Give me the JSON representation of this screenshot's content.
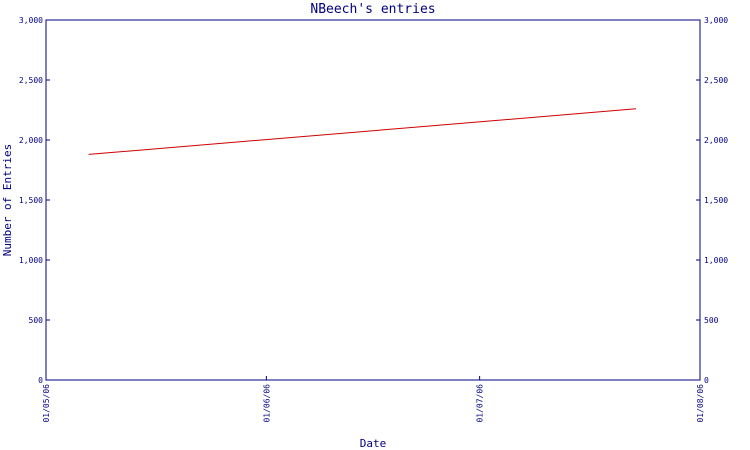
{
  "chart_data": {
    "type": "line",
    "title": "NBeech's entries",
    "xlabel": "Date",
    "ylabel": "Number of Entries",
    "ylim": [
      0,
      3000
    ],
    "yticks": [
      0,
      500,
      1000,
      1500,
      2000,
      2500,
      3000
    ],
    "ytick_labels": [
      "0",
      "500",
      "1,000",
      "1,500",
      "2,000",
      "2,500",
      "3,000"
    ],
    "xlim": [
      "2006-05-01",
      "2006-08-01"
    ],
    "xticks": [
      "2006-05-01",
      "2006-06-01",
      "2006-07-01",
      "2006-08-01"
    ],
    "xtick_labels": [
      "01/05/06",
      "01/06/06",
      "01/07/06",
      "01/08/06"
    ],
    "grid": false,
    "series": [
      {
        "color": "#cc0000",
        "points": [
          {
            "x": "2006-05-07",
            "y": 1880
          },
          {
            "x": "2006-07-23",
            "y": 2260
          }
        ]
      }
    ]
  }
}
